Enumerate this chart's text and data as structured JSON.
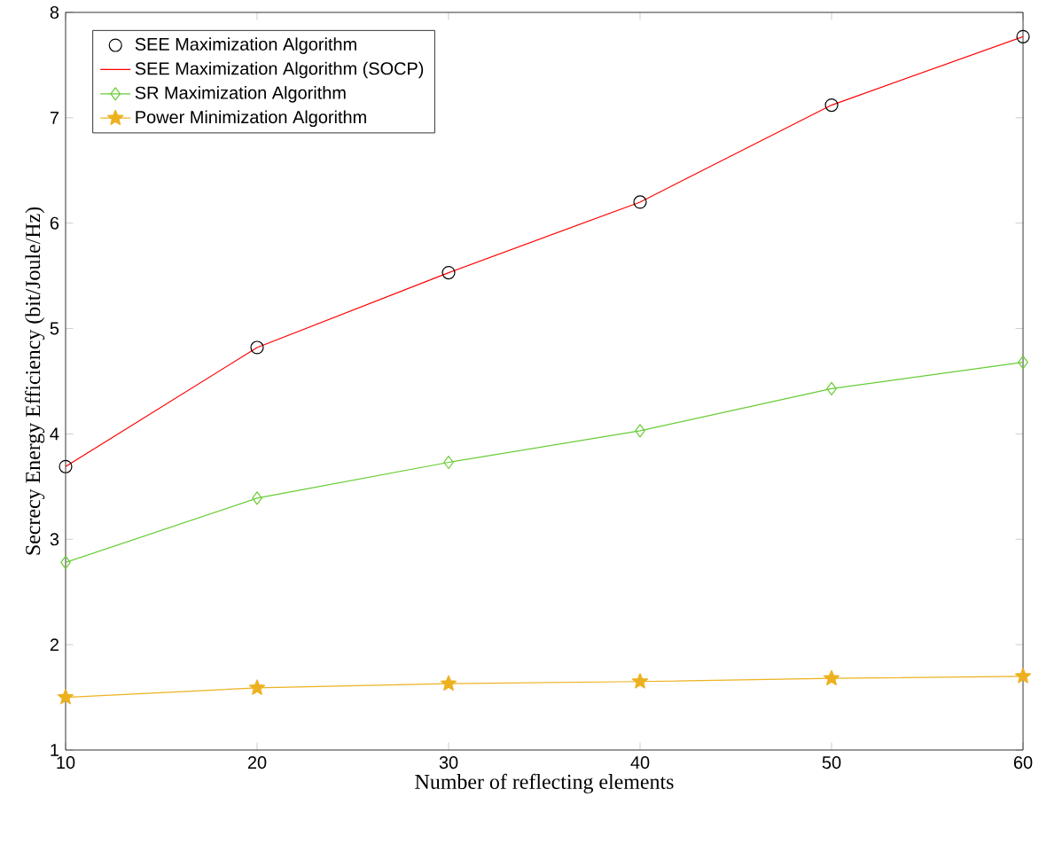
{
  "chart_data": {
    "type": "line",
    "xlabel": "Number of reflecting elements",
    "ylabel": "Secrecy Energy Efficiency (bit/Joule/Hz)",
    "x": [
      10,
      20,
      30,
      40,
      50,
      60
    ],
    "series": [
      {
        "name": "SEE Maximization Algorithm",
        "type": "scatter",
        "color": "#000000",
        "marker": "circle",
        "values": [
          3.69,
          4.82,
          5.53,
          6.2,
          7.12,
          7.77
        ]
      },
      {
        "name": "SEE Maximization Algorithm (SOCP)",
        "color": "#ff0000",
        "marker": "none",
        "values": [
          3.69,
          4.82,
          5.53,
          6.2,
          7.12,
          7.77
        ]
      },
      {
        "name": "SR Maximization Algorithm",
        "color": "#66cc33",
        "marker": "diamond",
        "values": [
          2.78,
          3.39,
          3.73,
          4.03,
          4.43,
          4.68
        ]
      },
      {
        "name": "Power Minimization Algorithm",
        "color": "#edb120",
        "marker": "star",
        "values": [
          1.5,
          1.59,
          1.63,
          1.65,
          1.68,
          1.7
        ]
      }
    ],
    "xlim": [
      10,
      60
    ],
    "ylim": [
      1,
      8
    ],
    "xticks": [
      10,
      20,
      30,
      40,
      50,
      60
    ],
    "yticks": [
      1,
      2,
      3,
      4,
      5,
      6,
      7,
      8
    ],
    "grid": false,
    "legend": "top left"
  }
}
